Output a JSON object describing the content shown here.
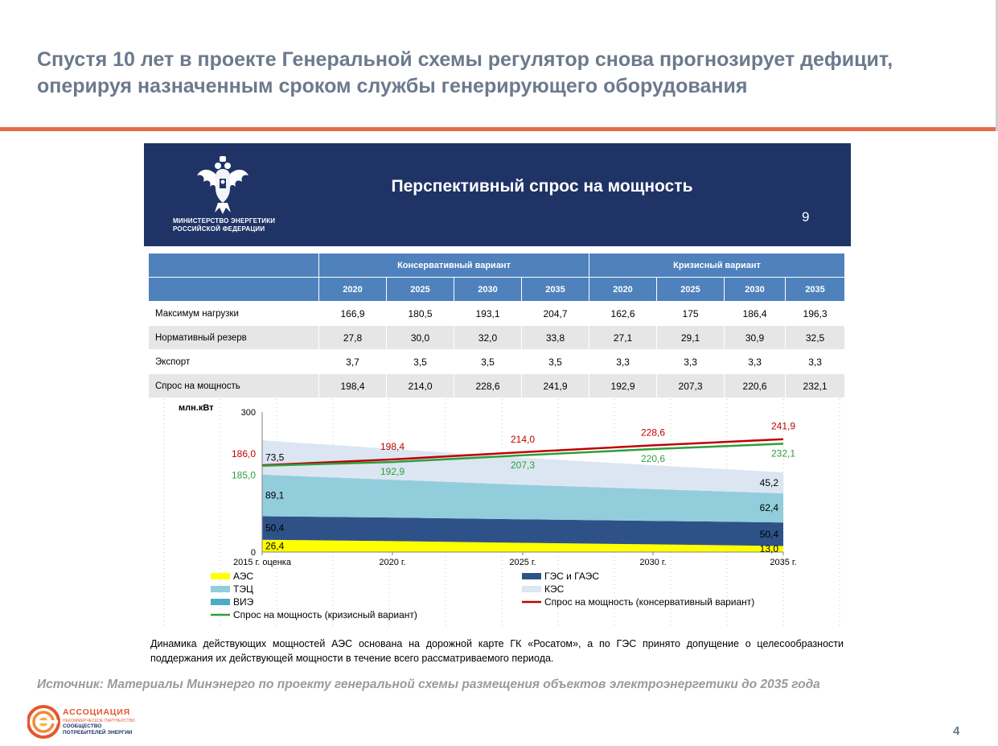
{
  "slide": {
    "title_line1": "Спустя  10 лет в проекте Генеральной схемы регулятор снова прогнозирует дефицит,",
    "title_line2": "оперируя назначенным сроком службы генерирующего оборудования",
    "source": "Источник: Материалы Минэнерго по проекту генеральной схемы размещения объектов электроэнергетики до 2035 года",
    "page_number": "4"
  },
  "panel": {
    "ministry_line1": "МИНИСТЕРСТВО ЭНЕРГЕТИКИ",
    "ministry_line2": "РОССИЙСКОЙ ФЕДЕРАЦИИ",
    "title": "Перспективный спрос на мощность",
    "slide_number": "9",
    "footnote": "Динамика действующих мощностей АЭС основана на дорожной карте ГК «Росатом», а по ГЭС принято допущение о целесообразности поддержания их действующей мощности в течение всего рассматриваемого периода."
  },
  "table": {
    "group_headers": [
      "Консервативный вариант",
      "Кризисный вариант"
    ],
    "years": [
      "2020",
      "2025",
      "2030",
      "2035",
      "2020",
      "2025",
      "2030",
      "2035"
    ],
    "rows": [
      {
        "label": "Максимум нагрузки",
        "values": [
          "166,9",
          "180,5",
          "193,1",
          "204,7",
          "162,6",
          "175",
          "186,4",
          "196,3"
        ]
      },
      {
        "label": "Нормативный резерв",
        "values": [
          "27,8",
          "30,0",
          "32,0",
          "33,8",
          "27,1",
          "29,1",
          "30,9",
          "32,5"
        ]
      },
      {
        "label": "Экспорт",
        "values": [
          "3,7",
          "3,5",
          "3,5",
          "3,5",
          "3,3",
          "3,3",
          "3,3",
          "3,3"
        ]
      },
      {
        "label": "Спрос на мощность",
        "values": [
          "198,4",
          "214,0",
          "228,6",
          "241,9",
          "192,9",
          "207,3",
          "220,6",
          "232,1"
        ]
      }
    ]
  },
  "chart_data": {
    "type": "area",
    "ylabel": "млн.кВт",
    "ylim": [
      0,
      300
    ],
    "y_ticks": [
      "0",
      "300"
    ],
    "categories": [
      "2015 г. оценка",
      "2020 г.",
      "2025 г.",
      "2030 г.",
      "2035 г."
    ],
    "series": [
      {
        "name": "АЭС",
        "color": "#ffff00",
        "values": [
          26.4,
          23.5,
          19.8,
          16.5,
          13.0
        ]
      },
      {
        "name": "ГЭС и ГАЭС",
        "color": "#2e5288",
        "values": [
          50.4,
          50.4,
          50.4,
          50.4,
          50.4
        ]
      },
      {
        "name": "ТЭЦ",
        "color": "#92cddc",
        "values": [
          89.1,
          81.0,
          74.0,
          68.0,
          62.4
        ]
      },
      {
        "name": "ВИЭ",
        "color": "#4aacc6",
        "values": [
          0,
          0,
          0,
          0,
          0
        ]
      },
      {
        "name": "КЭС",
        "color": "#dce6f2",
        "values": [
          73.5,
          66.0,
          58.0,
          51.0,
          45.2
        ]
      }
    ],
    "lines": [
      {
        "name": "Спрос на мощность (консервативный вариант)",
        "color": "#c00000",
        "values": [
          186.0,
          198.4,
          214.0,
          228.6,
          241.9
        ]
      },
      {
        "name": "Спрос на мощность (кризисный вариант)",
        "color": "#2e9e3e",
        "values": [
          185.0,
          192.9,
          207.3,
          220.6,
          232.1
        ]
      }
    ],
    "start_labels": [
      "26,4",
      "50,4",
      "89,1",
      "73,5"
    ],
    "end_labels": [
      "13,0",
      "50,4",
      "62,4",
      "45,2"
    ],
    "conservative_labels": [
      "186,0",
      "198,4",
      "214,0",
      "228,6",
      "241,9"
    ],
    "crisis_labels": [
      "185,0",
      "192,9",
      "207,3",
      "220,6",
      "232,1"
    ],
    "legend": [
      {
        "name": "АЭС",
        "kind": "box",
        "color": "#ffff00"
      },
      {
        "name": "ГЭС и ГАЭС",
        "kind": "box",
        "color": "#2e5288"
      },
      {
        "name": "ТЭЦ",
        "kind": "box",
        "color": "#92cddc"
      },
      {
        "name": "КЭС",
        "kind": "box",
        "color": "#dce6f2"
      },
      {
        "name": "ВИЭ",
        "kind": "box",
        "color": "#4aacc6"
      },
      {
        "name": "Спрос на мощность (консервативный вариант)",
        "kind": "line",
        "color": "#c00000"
      },
      {
        "name": "Спрос на мощность (кризисный вариант)",
        "kind": "line",
        "color": "#2e9e3e"
      }
    ]
  },
  "logo": {
    "name": "АССОЦИАЦИЯ",
    "sub1": "НЕКОММЕРЧЕСКОЕ ПАРТНЕРСТВО",
    "sub2": "СООБЩЕСТВО",
    "sub3": "ПОТРЕБИТЕЛЕЙ ЭНЕРГИИ"
  }
}
